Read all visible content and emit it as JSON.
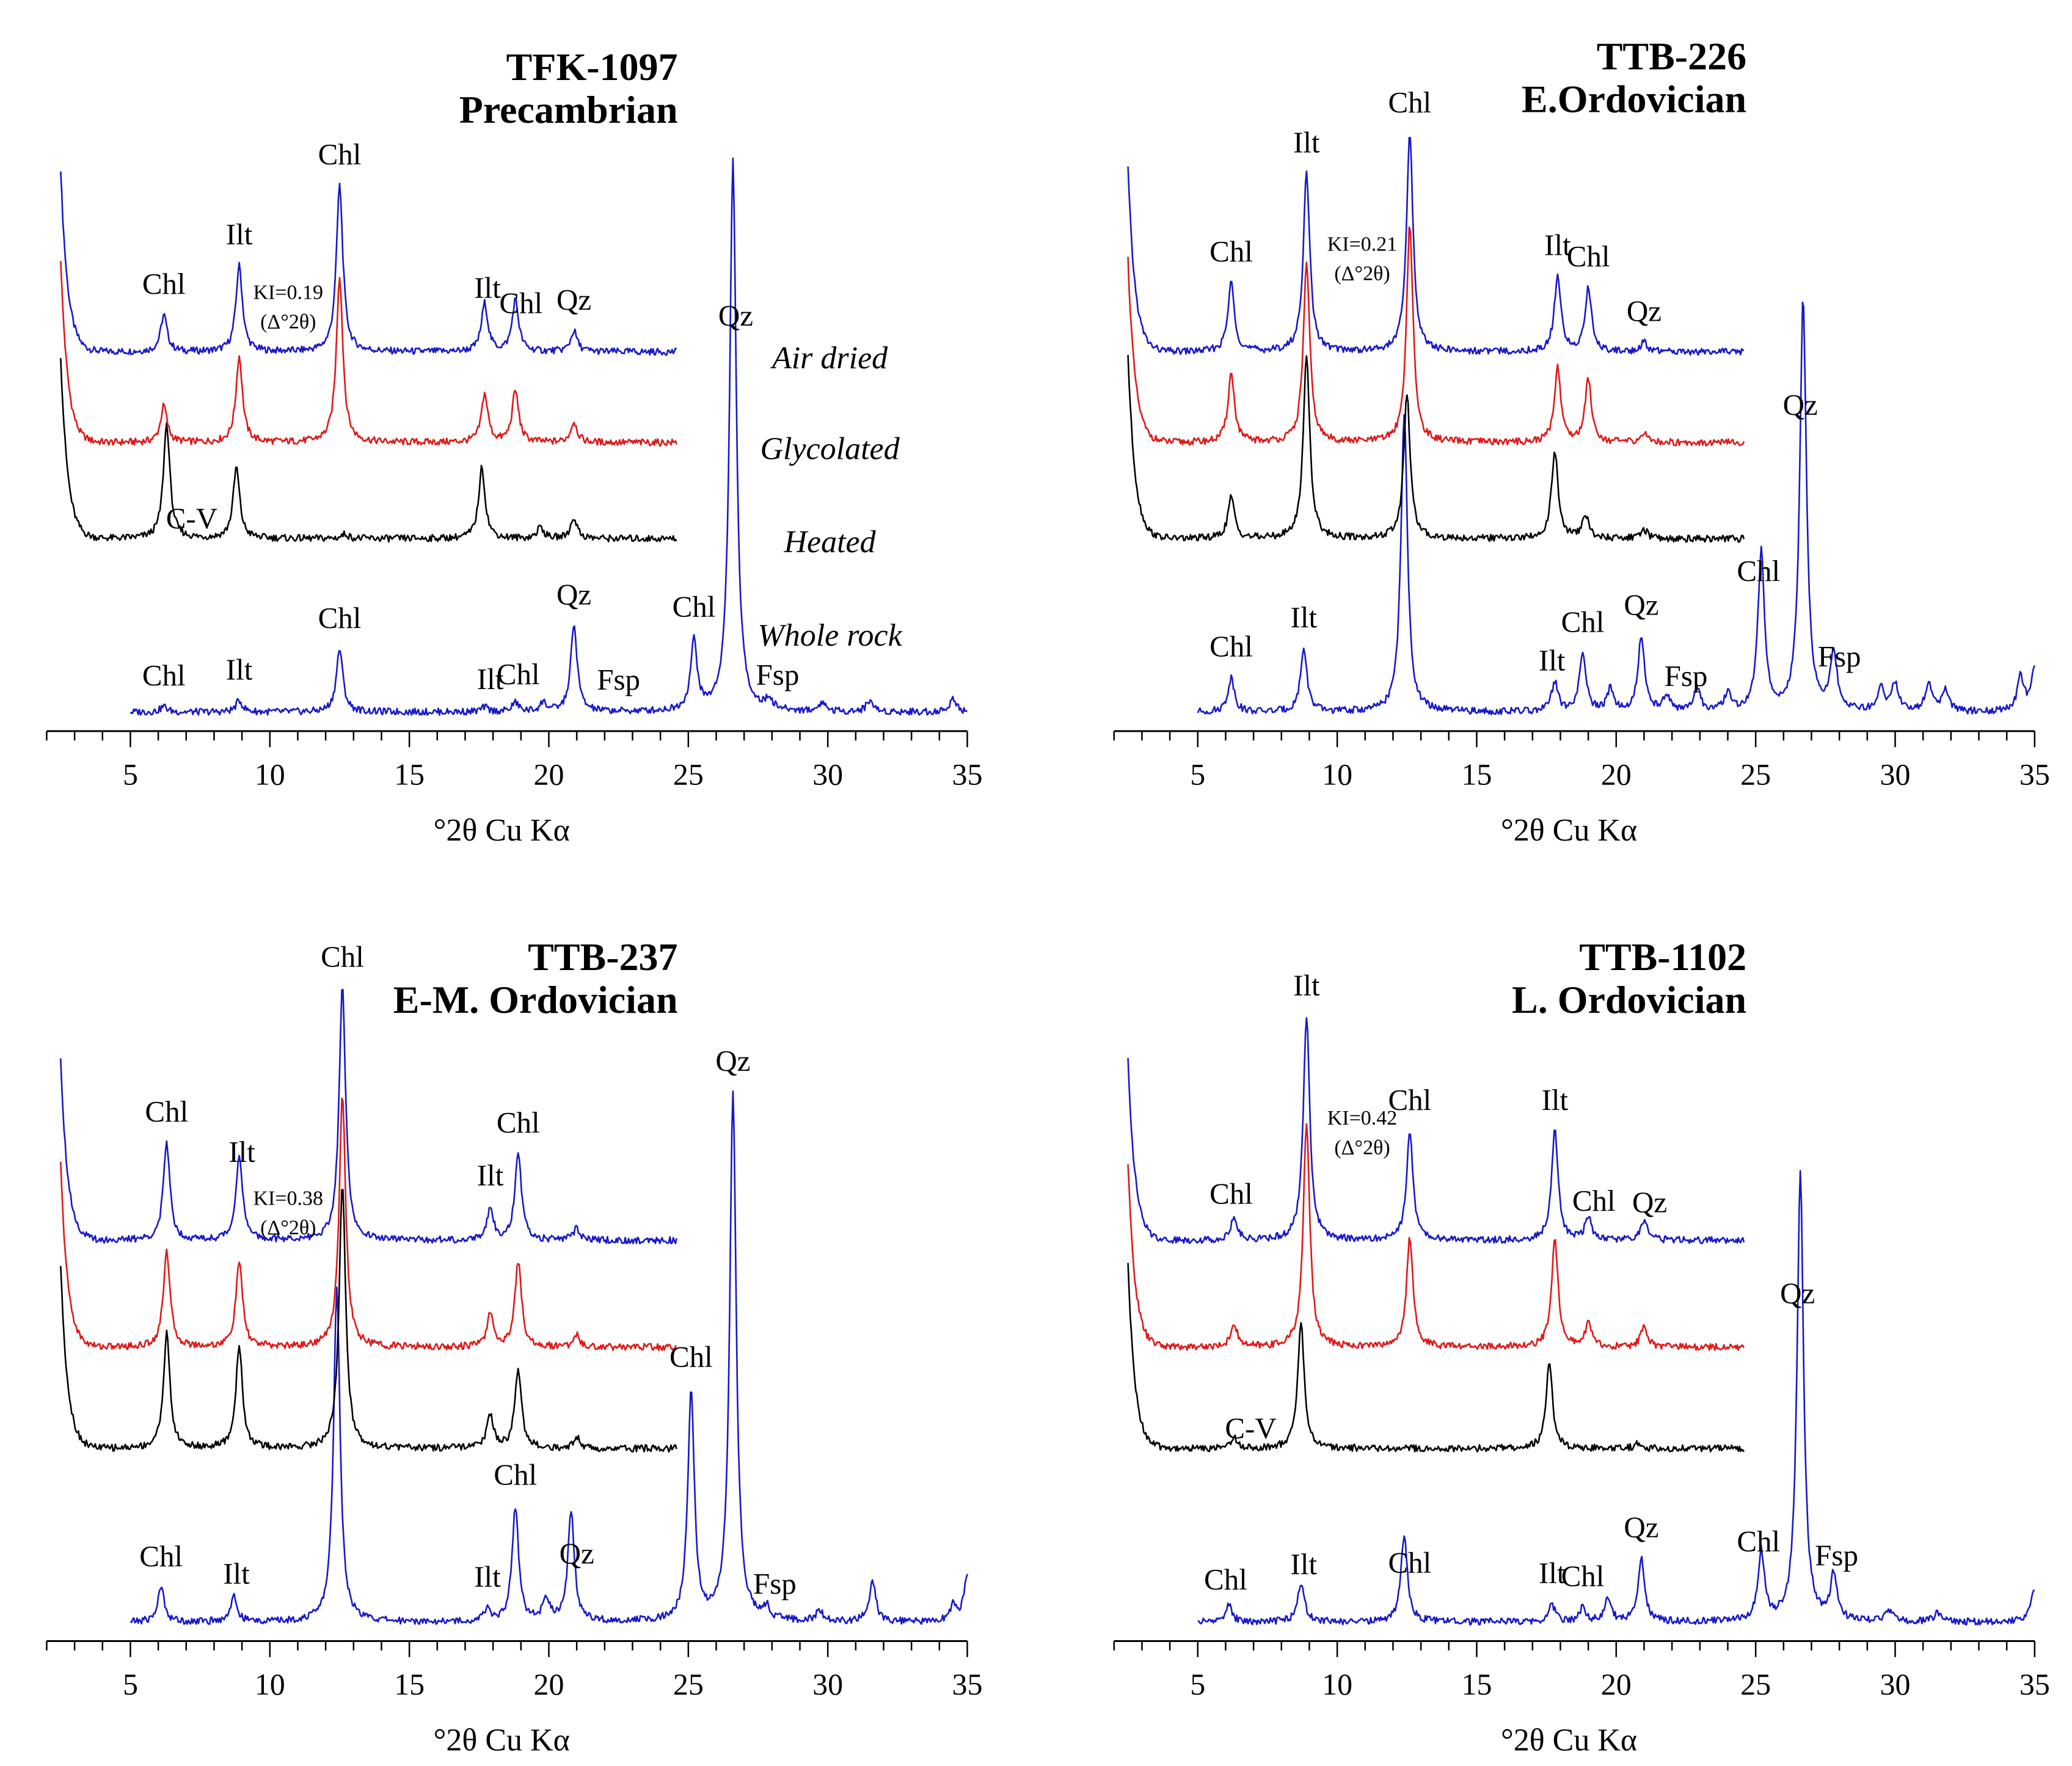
{
  "figure": {
    "condition_labels": [
      "Air dried",
      "Glycolated",
      "Heated",
      "Whole rock"
    ]
  },
  "colors": {
    "air_dried": "#1818c8",
    "glycolated": "#e01818",
    "heated": "#000000",
    "whole_rock": "#1818c8"
  },
  "chart_data": [
    {
      "type": "line",
      "title": "TFK-1097",
      "subtitle": "Precambrian",
      "xlabel": "°2θ Cu Kα",
      "xlim": [
        2,
        35
      ],
      "xticks": [
        5,
        10,
        15,
        20,
        25,
        30,
        35
      ],
      "ki_label": [
        "KI=0.19",
        "(Δ°2θ)"
      ],
      "series": [
        {
          "name": "Air dried",
          "xmax": 24.6,
          "peaks": [
            [
              6.2,
              0.32
            ],
            [
              8.9,
              0.75
            ],
            [
              12.5,
              1.45
            ],
            [
              17.7,
              0.42
            ],
            [
              18.8,
              0.45
            ],
            [
              20.9,
              0.18
            ]
          ]
        },
        {
          "name": "Glycolated",
          "xmax": 24.6,
          "peaks": [
            [
              6.2,
              0.32
            ],
            [
              8.9,
              0.75
            ],
            [
              12.5,
              1.45
            ],
            [
              17.7,
              0.42
            ],
            [
              18.8,
              0.45
            ],
            [
              20.9,
              0.18
            ]
          ]
        },
        {
          "name": "Heated",
          "xmax": 24.6,
          "peaks": [
            [
              6.3,
              1.0
            ],
            [
              8.8,
              0.62
            ],
            [
              12.7,
              0.04
            ],
            [
              17.6,
              0.62
            ],
            [
              19.7,
              0.1
            ],
            [
              20.9,
              0.18
            ]
          ]
        },
        {
          "name": "Whole rock",
          "xmax": 35,
          "peaks": [
            [
              6.2,
              0.05
            ],
            [
              8.9,
              0.1
            ],
            [
              12.5,
              0.55
            ],
            [
              17.7,
              0.04
            ],
            [
              18.8,
              0.08
            ],
            [
              19.8,
              0.08
            ],
            [
              20.9,
              0.75
            ],
            [
              25.2,
              0.6
            ],
            [
              26.6,
              4.8
            ],
            [
              27.9,
              0.09
            ],
            [
              29.8,
              0.08
            ],
            [
              31.5,
              0.1
            ],
            [
              34.5,
              0.12
            ]
          ]
        }
      ],
      "annotations": [
        {
          "text": "Chl",
          "x": 6.2,
          "series": 0
        },
        {
          "text": "Ilt",
          "x": 8.9,
          "series": 0
        },
        {
          "text": "Chl",
          "x": 12.5,
          "series": 0
        },
        {
          "text": "Ilt",
          "x": 17.8,
          "series": 0
        },
        {
          "text": "Chl",
          "x": 19.0,
          "series": 0
        },
        {
          "text": "Qz",
          "x": 20.9,
          "series": 0
        },
        {
          "text": "C-V",
          "x": 7.2,
          "series": 2
        },
        {
          "text": "Chl",
          "x": 6.2,
          "series": 3
        },
        {
          "text": "Ilt",
          "x": 8.9,
          "series": 3
        },
        {
          "text": "Chl",
          "x": 12.5,
          "series": 3
        },
        {
          "text": "Ilt",
          "x": 17.9,
          "series": 3
        },
        {
          "text": "Chl",
          "x": 18.9,
          "series": 3
        },
        {
          "text": "Qz",
          "x": 20.9,
          "series": 3
        },
        {
          "text": "Fsp",
          "x": 22.5,
          "series": 3
        },
        {
          "text": "Chl",
          "x": 25.2,
          "series": 3
        },
        {
          "text": "Qz",
          "x": 26.7,
          "series": 3
        },
        {
          "text": "Fsp",
          "x": 28.2,
          "series": 3
        }
      ]
    },
    {
      "type": "line",
      "title": "TTB-226",
      "subtitle": "E.Ordovician",
      "xlabel": "°2θ Cu Kα",
      "xlim": [
        2,
        35
      ],
      "xticks": [
        5,
        10,
        15,
        20,
        25,
        30,
        35
      ],
      "ki_label": [
        "KI=0.21",
        "(Δ°2θ)"
      ],
      "series": [
        {
          "name": "Air dried",
          "xmax": 24.6,
          "peaks": [
            [
              6.2,
              0.6
            ],
            [
              8.9,
              1.55
            ],
            [
              12.6,
              1.9
            ],
            [
              17.9,
              0.65
            ],
            [
              19.0,
              0.55
            ],
            [
              21.0,
              0.08
            ]
          ]
        },
        {
          "name": "Glycolated",
          "xmax": 24.6,
          "peaks": [
            [
              6.2,
              0.6
            ],
            [
              8.9,
              1.55
            ],
            [
              12.6,
              1.9
            ],
            [
              17.9,
              0.65
            ],
            [
              19.0,
              0.55
            ],
            [
              21.0,
              0.08
            ]
          ]
        },
        {
          "name": "Heated",
          "xmax": 24.6,
          "peaks": [
            [
              6.2,
              0.36
            ],
            [
              8.9,
              1.6
            ],
            [
              12.5,
              1.25
            ],
            [
              17.8,
              0.76
            ],
            [
              18.9,
              0.2
            ],
            [
              21.0,
              0.08
            ]
          ]
        },
        {
          "name": "Whole rock",
          "xmax": 35,
          "peaks": [
            [
              6.2,
              0.3
            ],
            [
              8.8,
              0.55
            ],
            [
              12.4,
              2.6
            ],
            [
              17.8,
              0.25
            ],
            [
              18.8,
              0.5
            ],
            [
              19.8,
              0.2
            ],
            [
              20.9,
              0.65
            ],
            [
              21.8,
              0.15
            ],
            [
              22.9,
              0.2
            ],
            [
              24.0,
              0.15
            ],
            [
              25.2,
              1.4
            ],
            [
              26.7,
              3.6
            ],
            [
              27.8,
              0.5
            ],
            [
              29.5,
              0.2
            ],
            [
              30.0,
              0.25
            ],
            [
              31.2,
              0.25
            ],
            [
              31.8,
              0.2
            ],
            [
              34.5,
              0.3
            ],
            [
              35.0,
              0.4
            ]
          ]
        }
      ],
      "annotations": [
        {
          "text": "Chl",
          "x": 6.2,
          "series": 0
        },
        {
          "text": "Ilt",
          "x": 8.9,
          "series": 0
        },
        {
          "text": "Chl",
          "x": 12.6,
          "series": 0
        },
        {
          "text": "Ilt",
          "x": 17.9,
          "series": 0
        },
        {
          "text": "Chl",
          "x": 19.0,
          "series": 0
        },
        {
          "text": "Qz",
          "x": 21.0,
          "series": 0
        },
        {
          "text": "Chl",
          "x": 6.2,
          "series": 3
        },
        {
          "text": "Ilt",
          "x": 8.8,
          "series": 3
        },
        {
          "text": "Ilt",
          "x": 17.7,
          "series": 3
        },
        {
          "text": "Chl",
          "x": 18.8,
          "series": 3
        },
        {
          "text": "Qz",
          "x": 20.9,
          "series": 3
        },
        {
          "text": "Fsp",
          "x": 22.5,
          "series": 3
        },
        {
          "text": "Chl",
          "x": 25.1,
          "series": 3
        },
        {
          "text": "Qz",
          "x": 26.6,
          "series": 3
        },
        {
          "text": "Fsp",
          "x": 28.0,
          "series": 3
        }
      ]
    },
    {
      "type": "line",
      "title": "TTB-237",
      "subtitle": "E-M. Ordovician",
      "xlabel": "°2θ Cu Kα",
      "xlim": [
        2,
        35
      ],
      "xticks": [
        5,
        10,
        15,
        20,
        25,
        30,
        35
      ],
      "ki_label": [
        "KI=0.38",
        "(Δ°2θ)"
      ],
      "series": [
        {
          "name": "Air dried",
          "xmax": 24.6,
          "peaks": [
            [
              6.3,
              0.85
            ],
            [
              8.9,
              0.75
            ],
            [
              12.6,
              2.2
            ],
            [
              17.9,
              0.28
            ],
            [
              18.9,
              0.75
            ],
            [
              21.0,
              0.1
            ]
          ]
        },
        {
          "name": "Glycolated",
          "xmax": 24.6,
          "peaks": [
            [
              6.3,
              0.85
            ],
            [
              8.9,
              0.75
            ],
            [
              12.6,
              2.2
            ],
            [
              17.9,
              0.28
            ],
            [
              18.9,
              0.75
            ],
            [
              21.0,
              0.1
            ]
          ]
        },
        {
          "name": "Heated",
          "xmax": 24.6,
          "peaks": [
            [
              6.3,
              1.0
            ],
            [
              8.9,
              0.9
            ],
            [
              12.6,
              2.3
            ],
            [
              17.9,
              0.3
            ],
            [
              18.9,
              0.7
            ],
            [
              21.0,
              0.1
            ]
          ]
        },
        {
          "name": "Whole rock",
          "xmax": 35,
          "peaks": [
            [
              6.1,
              0.3
            ],
            [
              8.7,
              0.22
            ],
            [
              12.4,
              2.9
            ],
            [
              17.8,
              0.1
            ],
            [
              18.8,
              1.0
            ],
            [
              19.9,
              0.2
            ],
            [
              20.8,
              0.95
            ],
            [
              25.1,
              2.0
            ],
            [
              26.6,
              4.6
            ],
            [
              27.8,
              0.1
            ],
            [
              29.7,
              0.1
            ],
            [
              31.6,
              0.35
            ],
            [
              34.5,
              0.15
            ],
            [
              35.0,
              0.4
            ]
          ]
        }
      ],
      "annotations": [
        {
          "text": "Chl",
          "x": 6.3,
          "series": 0
        },
        {
          "text": "Ilt",
          "x": 9.0,
          "series": 0
        },
        {
          "text": "Chl",
          "x": 12.6,
          "series": 0
        },
        {
          "text": "Ilt",
          "x": 17.9,
          "series": 0
        },
        {
          "text": "Chl",
          "x": 18.9,
          "series": 0
        },
        {
          "text": "Chl",
          "x": 6.1,
          "series": 3
        },
        {
          "text": "Ilt",
          "x": 8.8,
          "series": 3
        },
        {
          "text": "Ilt",
          "x": 17.8,
          "series": 3
        },
        {
          "text": "Chl",
          "x": 18.8,
          "series": 3
        },
        {
          "text": "Qz",
          "x": 21.0,
          "series": 3
        },
        {
          "text": "Chl",
          "x": 25.1,
          "series": 3
        },
        {
          "text": "Qz",
          "x": 26.6,
          "series": 3
        },
        {
          "text": "Fsp",
          "x": 28.1,
          "series": 3
        }
      ]
    },
    {
      "type": "line",
      "title": "TTB-1102",
      "subtitle": "L. Ordovician",
      "xlabel": "°2θ Cu Kα",
      "xlim": [
        2,
        35
      ],
      "xticks": [
        5,
        10,
        15,
        20,
        25,
        30,
        35
      ],
      "ki_label": [
        "KI=0.42",
        "(Δ°2θ)"
      ],
      "series": [
        {
          "name": "Air dried",
          "xmax": 24.6,
          "peaks": [
            [
              6.3,
              0.2
            ],
            [
              8.9,
              1.95
            ],
            [
              12.6,
              0.95
            ],
            [
              17.8,
              0.95
            ],
            [
              19.0,
              0.2
            ],
            [
              21.0,
              0.18
            ]
          ]
        },
        {
          "name": "Glycolated",
          "xmax": 24.6,
          "peaks": [
            [
              6.3,
              0.2
            ],
            [
              8.9,
              1.95
            ],
            [
              12.6,
              0.95
            ],
            [
              17.8,
              0.95
            ],
            [
              19.0,
              0.2
            ],
            [
              21.0,
              0.18
            ]
          ]
        },
        {
          "name": "Heated",
          "xmax": 24.6,
          "peaks": [
            [
              6.3,
              0.1
            ],
            [
              8.7,
              1.1
            ],
            [
              17.6,
              0.75
            ],
            [
              20.8,
              0.05
            ]
          ]
        },
        {
          "name": "Whole rock",
          "xmax": 35,
          "peaks": [
            [
              6.1,
              0.15
            ],
            [
              8.7,
              0.35
            ],
            [
              12.4,
              0.75
            ],
            [
              17.7,
              0.15
            ],
            [
              18.8,
              0.12
            ],
            [
              19.7,
              0.2
            ],
            [
              20.9,
              0.55
            ],
            [
              25.2,
              0.6
            ],
            [
              26.6,
              3.9
            ],
            [
              27.8,
              0.4
            ],
            [
              29.8,
              0.1
            ],
            [
              31.5,
              0.08
            ],
            [
              35.0,
              0.3
            ]
          ]
        }
      ],
      "annotations": [
        {
          "text": "Chl",
          "x": 6.2,
          "series": 0
        },
        {
          "text": "Ilt",
          "x": 8.9,
          "series": 0
        },
        {
          "text": "Chl",
          "x": 12.6,
          "series": 0
        },
        {
          "text": "Ilt",
          "x": 17.8,
          "series": 0
        },
        {
          "text": "Chl",
          "x": 19.2,
          "series": 0
        },
        {
          "text": "Qz",
          "x": 21.2,
          "series": 0
        },
        {
          "text": "C-V",
          "x": 6.9,
          "series": 2
        },
        {
          "text": "Chl",
          "x": 6.0,
          "series": 3
        },
        {
          "text": "Ilt",
          "x": 8.8,
          "series": 3
        },
        {
          "text": "Chl",
          "x": 12.6,
          "series": 3
        },
        {
          "text": "Ilt",
          "x": 17.7,
          "series": 3
        },
        {
          "text": "Chl",
          "x": 18.8,
          "series": 3
        },
        {
          "text": "Qz",
          "x": 20.9,
          "series": 3
        },
        {
          "text": "Chl",
          "x": 25.1,
          "series": 3
        },
        {
          "text": "Qz",
          "x": 26.5,
          "series": 3
        },
        {
          "text": "Fsp",
          "x": 27.9,
          "series": 3
        }
      ]
    }
  ]
}
